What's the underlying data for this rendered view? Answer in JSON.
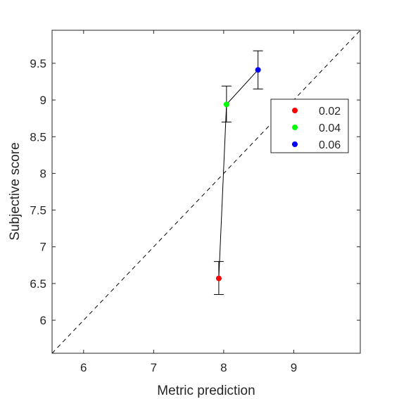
{
  "chart_data": {
    "type": "scatter",
    "title": "",
    "xlabel": "Metric prediction",
    "ylabel": "Subjective score",
    "xlim": [
      5.55,
      9.95
    ],
    "ylim": [
      5.55,
      9.95
    ],
    "xticks": [
      6,
      7,
      8,
      9
    ],
    "yticks": [
      6,
      6.5,
      7,
      7.5,
      8,
      8.5,
      9,
      9.5
    ],
    "grid": false,
    "legend_position": "right, upper middle",
    "reference_line": {
      "style": "dashed",
      "from": [
        5.55,
        5.55
      ],
      "to": [
        9.95,
        9.95
      ],
      "color": "#000000"
    },
    "connecting_line": {
      "color": "#000000"
    },
    "series": [
      {
        "name": "0.02",
        "color": "#ff0000",
        "x": 7.93,
        "y": 6.57,
        "err_low": 6.35,
        "err_high": 6.8
      },
      {
        "name": "0.04",
        "color": "#00ff00",
        "x": 8.04,
        "y": 8.94,
        "err_low": 8.7,
        "err_high": 9.19
      },
      {
        "name": "0.06",
        "color": "#0000ff",
        "x": 8.49,
        "y": 9.41,
        "err_low": 9.15,
        "err_high": 9.67
      }
    ]
  }
}
